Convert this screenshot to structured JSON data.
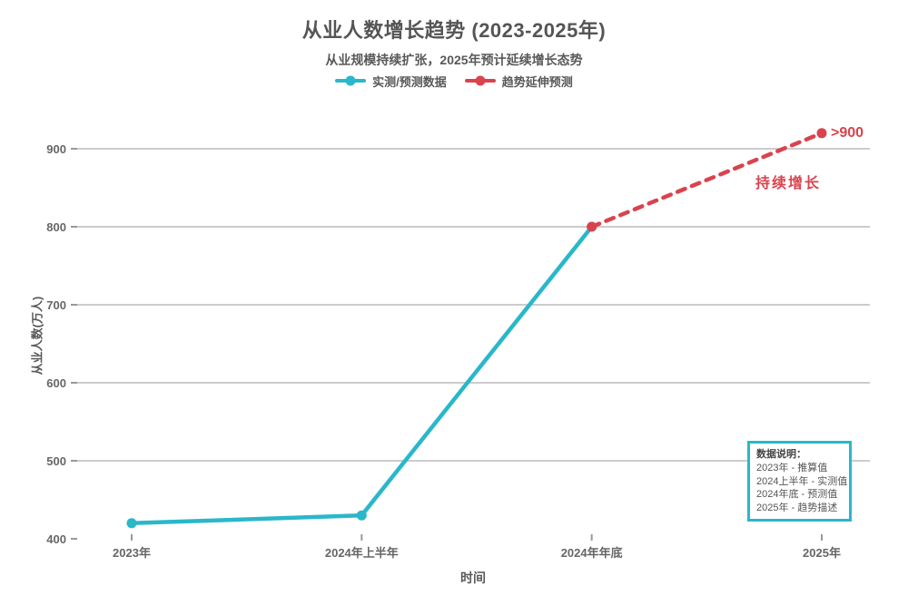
{
  "header": {
    "title": "从业人数增长趋势 (2023-2025年)",
    "subtitle": "从业规模持续扩张，2025年预计延续增长态势"
  },
  "axes": {
    "x_label": "时间",
    "y_label": "从业人数(万人)"
  },
  "annotations": {
    "trend_text": "持续增长",
    "end_value_label": ">900"
  },
  "note_box": {
    "title": "数据说明：",
    "lines": [
      "2023年 - 推算值",
      "2024上半年 - 实测值",
      "2024年底 - 预测值",
      "2025年 - 趋势描述"
    ],
    "border_color": "#2ab7ca"
  },
  "colors": {
    "background": "#ffffff",
    "accent_cyan": "#2ab7ca",
    "accent_red": "#d9434e",
    "title_text": "#555555",
    "tick_label": "#666666",
    "tick_mark": "#999999",
    "gridline": "#cccccc"
  },
  "chart_data": {
    "type": "line",
    "title": "从业人数增长趋势 (2023-2025年)",
    "subtitle": "从业规模持续扩张，2025年预计延续增长态势",
    "xlabel": "时间",
    "ylabel": "从业人数(万人)",
    "categories": [
      "2023年",
      "2024年上半年",
      "2024年年底",
      "2025年"
    ],
    "yticks": [
      400,
      500,
      600,
      700,
      800,
      900
    ],
    "ylim": [
      400,
      950
    ],
    "grid": true,
    "legend_position": "top-center",
    "series": [
      {
        "name": "实测/预测数据",
        "style": "solid",
        "color": "#2ab7ca",
        "x": [
          "2023年",
          "2024年上半年",
          "2024年年底"
        ],
        "values": [
          420,
          430,
          800
        ]
      },
      {
        "name": "趋势延伸预测",
        "style": "dashed",
        "color": "#d9434e",
        "x": [
          "2024年年底",
          "2025年"
        ],
        "values": [
          800,
          920
        ],
        "value_labels": [
          "800",
          ">900"
        ]
      }
    ],
    "text_annotations": [
      {
        "text": "持续增长",
        "color": "#d9434e",
        "near": "2025年"
      },
      {
        "text": ">900",
        "color": "#d9434e",
        "at": "2025年"
      }
    ]
  }
}
